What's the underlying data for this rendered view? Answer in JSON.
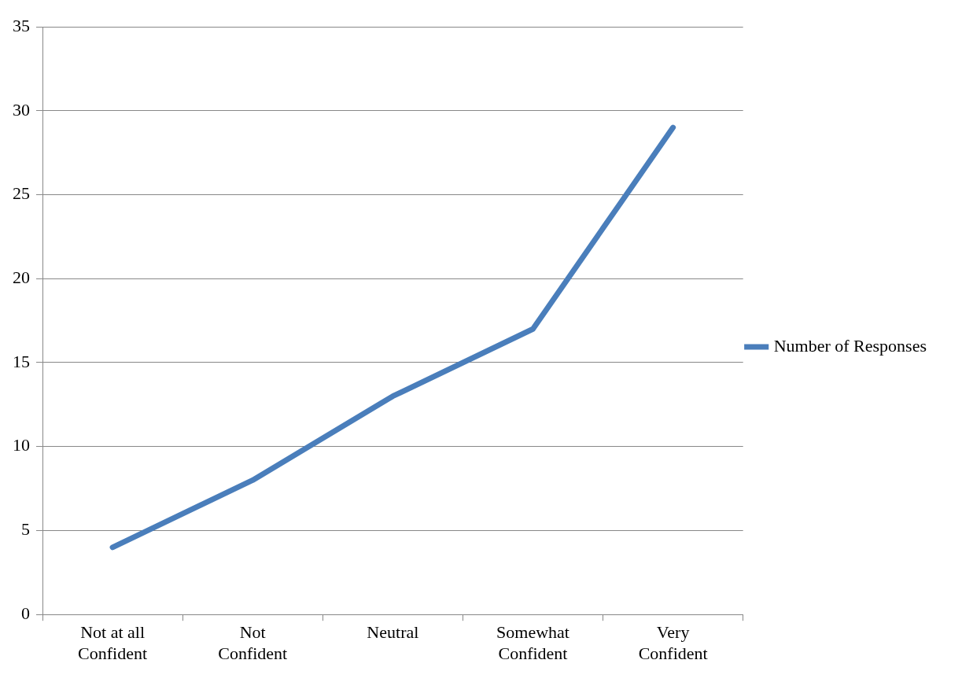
{
  "chart_data": {
    "type": "line",
    "categories": [
      "Not at all Confident",
      "Not Confident",
      "Neutral",
      "Somewhat Confident",
      "Very Confident"
    ],
    "series": [
      {
        "name": "Number of Responses",
        "color": "#4a7ebb",
        "values": [
          4,
          8,
          13,
          17,
          29
        ]
      }
    ],
    "ylim": [
      0,
      35
    ],
    "yticks": [
      0,
      5,
      10,
      15,
      20,
      25,
      30,
      35
    ],
    "grid": "y",
    "legend": "right",
    "marker": "none",
    "line_style": "solid"
  }
}
